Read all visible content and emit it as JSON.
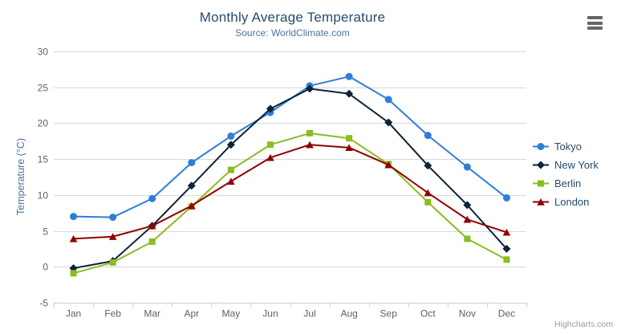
{
  "header": {
    "title": "Monthly Average Temperature",
    "subtitle": "Source: WorldClimate.com"
  },
  "credits": "Highcharts.com",
  "menu": {
    "icon": "hamburger-icon"
  },
  "chart_data": {
    "type": "line",
    "title": "Monthly Average Temperature",
    "subtitle": "Source: WorldClimate.com",
    "categories": [
      "Jan",
      "Feb",
      "Mar",
      "Apr",
      "May",
      "Jun",
      "Jul",
      "Aug",
      "Sep",
      "Oct",
      "Nov",
      "Dec"
    ],
    "series": [
      {
        "name": "Tokyo",
        "color": "#2f7ed8",
        "marker": "circle",
        "values": [
          7.0,
          6.9,
          9.5,
          14.5,
          18.2,
          21.5,
          25.2,
          26.5,
          23.3,
          18.3,
          13.9,
          9.6
        ]
      },
      {
        "name": "New York",
        "color": "#0d233a",
        "marker": "diamond",
        "values": [
          -0.2,
          0.8,
          5.7,
          11.3,
          17.0,
          22.0,
          24.8,
          24.1,
          20.1,
          14.1,
          8.6,
          2.5
        ]
      },
      {
        "name": "Berlin",
        "color": "#8bbc21",
        "marker": "square",
        "values": [
          -0.9,
          0.6,
          3.5,
          8.4,
          13.5,
          17.0,
          18.6,
          17.9,
          14.3,
          9.0,
          3.9,
          1.0
        ]
      },
      {
        "name": "London",
        "color": "#910000",
        "marker": "triangle",
        "values": [
          3.9,
          4.2,
          5.7,
          8.5,
          11.9,
          15.2,
          17.0,
          16.6,
          14.2,
          10.3,
          6.6,
          4.8
        ]
      }
    ],
    "xlabel": "",
    "ylabel": "Temperature (°C)",
    "ylim": [
      -5,
      30
    ],
    "ytick_step": 5,
    "grid": true,
    "legend_position": "right",
    "colors": {
      "background": "#ffffff",
      "grid_line": "#d8d8d8",
      "axis_line": "#c0d0e0",
      "tick": "#c0d0e0",
      "axis_label": "#606060",
      "axis_title": "#4d759e",
      "title": "#274b6d",
      "subtitle": "#4d759e",
      "legend_text": "#274b6d",
      "credits": "#999999",
      "menu_icon": "#666666"
    }
  }
}
